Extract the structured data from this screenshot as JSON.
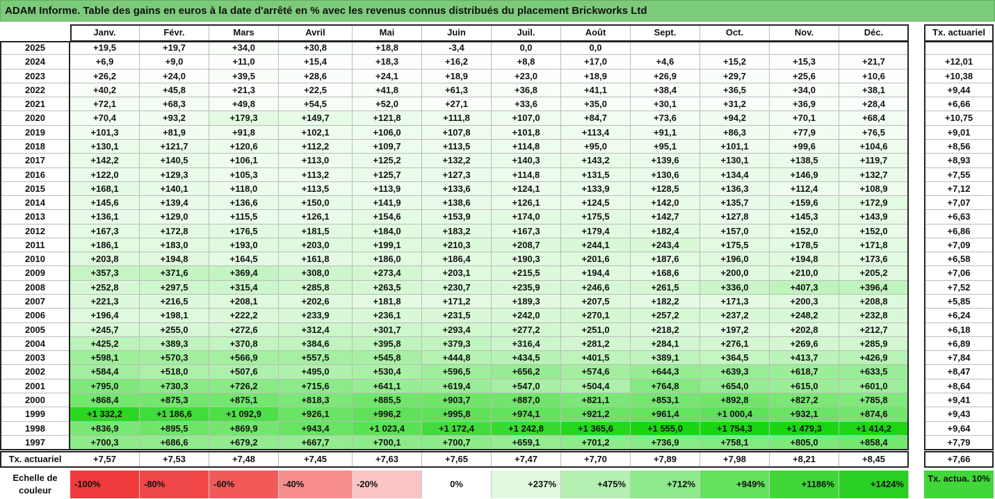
{
  "title": "ADAM Informe. Table des gains en euros à la date d'arrêté en % avec les revenus connus distribués du placement Brickworks Ltd",
  "months": [
    "Janv.",
    "Févr.",
    "Mars",
    "Avril",
    "Mai",
    "Juin",
    "Juil.",
    "Août",
    "Sept.",
    "Oct.",
    "Nov.",
    "Déc."
  ],
  "tx_header": "Tx. actuariel",
  "rows": [
    {
      "year": "2025",
      "values": [
        "+19,5",
        "+19,7",
        "+34,0",
        "+30,8",
        "+18,8",
        "-3,4",
        "0,0",
        "0,0",
        "",
        "",
        "",
        ""
      ],
      "tx": ""
    },
    {
      "year": "2024",
      "values": [
        "+6,9",
        "+9,0",
        "+11,0",
        "+15,4",
        "+18,3",
        "+16,2",
        "+8,8",
        "+17,0",
        "+4,6",
        "+15,2",
        "+15,3",
        "+21,7"
      ],
      "tx": "+12,01"
    },
    {
      "year": "2023",
      "values": [
        "+26,2",
        "+24,0",
        "+39,5",
        "+28,6",
        "+24,1",
        "+18,9",
        "+23,0",
        "+18,9",
        "+26,9",
        "+29,7",
        "+25,6",
        "+10,6"
      ],
      "tx": "+10,38"
    },
    {
      "year": "2022",
      "values": [
        "+40,2",
        "+45,8",
        "+21,3",
        "+22,5",
        "+41,8",
        "+61,3",
        "+36,8",
        "+41,1",
        "+38,4",
        "+36,5",
        "+34,0",
        "+38,1"
      ],
      "tx": "+9,44"
    },
    {
      "year": "2021",
      "values": [
        "+72,1",
        "+68,3",
        "+49,8",
        "+54,5",
        "+52,0",
        "+27,1",
        "+33,6",
        "+35,0",
        "+30,1",
        "+31,2",
        "+36,9",
        "+28,4"
      ],
      "tx": "+6,66"
    },
    {
      "year": "2020",
      "values": [
        "+70,4",
        "+93,2",
        "+179,3",
        "+149,7",
        "+121,8",
        "+111,8",
        "+107,0",
        "+84,7",
        "+73,6",
        "+94,2",
        "+70,1",
        "+68,4"
      ],
      "tx": "+10,75"
    },
    {
      "year": "2019",
      "values": [
        "+101,3",
        "+81,9",
        "+91,8",
        "+102,1",
        "+106,0",
        "+107,8",
        "+101,8",
        "+113,4",
        "+91,1",
        "+86,3",
        "+77,9",
        "+76,5"
      ],
      "tx": "+9,01"
    },
    {
      "year": "2018",
      "values": [
        "+130,1",
        "+121,7",
        "+120,6",
        "+112,2",
        "+109,7",
        "+113,5",
        "+114,8",
        "+95,0",
        "+95,1",
        "+101,1",
        "+99,6",
        "+104,6"
      ],
      "tx": "+8,56"
    },
    {
      "year": "2017",
      "values": [
        "+142,2",
        "+140,5",
        "+106,1",
        "+113,0",
        "+125,2",
        "+132,2",
        "+140,3",
        "+143,2",
        "+139,6",
        "+130,1",
        "+138,5",
        "+119,7"
      ],
      "tx": "+8,93"
    },
    {
      "year": "2016",
      "values": [
        "+122,0",
        "+129,3",
        "+105,3",
        "+113,2",
        "+125,7",
        "+127,3",
        "+114,8",
        "+131,5",
        "+130,6",
        "+134,4",
        "+146,9",
        "+132,7"
      ],
      "tx": "+7,55"
    },
    {
      "year": "2015",
      "values": [
        "+168,1",
        "+140,1",
        "+118,0",
        "+113,5",
        "+113,9",
        "+133,6",
        "+124,1",
        "+133,9",
        "+128,5",
        "+136,3",
        "+112,4",
        "+108,9"
      ],
      "tx": "+7,12"
    },
    {
      "year": "2014",
      "values": [
        "+145,6",
        "+139,4",
        "+136,6",
        "+150,0",
        "+141,9",
        "+138,6",
        "+126,1",
        "+124,5",
        "+142,0",
        "+135,7",
        "+159,6",
        "+172,9"
      ],
      "tx": "+7,07"
    },
    {
      "year": "2013",
      "values": [
        "+136,1",
        "+129,0",
        "+115,5",
        "+126,1",
        "+154,6",
        "+153,9",
        "+174,0",
        "+175,5",
        "+142,7",
        "+127,8",
        "+145,3",
        "+143,9"
      ],
      "tx": "+6,63"
    },
    {
      "year": "2012",
      "values": [
        "+167,3",
        "+172,8",
        "+176,5",
        "+181,5",
        "+184,0",
        "+183,2",
        "+167,3",
        "+179,4",
        "+182,4",
        "+157,0",
        "+152,0",
        "+152,0"
      ],
      "tx": "+6,86"
    },
    {
      "year": "2011",
      "values": [
        "+186,1",
        "+183,0",
        "+193,0",
        "+203,0",
        "+199,1",
        "+210,3",
        "+208,7",
        "+244,1",
        "+243,4",
        "+175,5",
        "+178,5",
        "+171,8"
      ],
      "tx": "+7,09"
    },
    {
      "year": "2010",
      "values": [
        "+203,8",
        "+194,8",
        "+164,5",
        "+161,8",
        "+186,0",
        "+186,4",
        "+190,3",
        "+201,6",
        "+187,6",
        "+196,0",
        "+194,8",
        "+173,6"
      ],
      "tx": "+6,58"
    },
    {
      "year": "2009",
      "values": [
        "+357,3",
        "+371,6",
        "+369,4",
        "+308,0",
        "+273,4",
        "+203,1",
        "+215,5",
        "+194,4",
        "+168,6",
        "+200,0",
        "+210,0",
        "+205,2"
      ],
      "tx": "+7,06"
    },
    {
      "year": "2008",
      "values": [
        "+252,8",
        "+297,5",
        "+315,4",
        "+285,8",
        "+263,5",
        "+230,7",
        "+235,9",
        "+246,6",
        "+261,5",
        "+336,0",
        "+407,3",
        "+396,4"
      ],
      "tx": "+7,52"
    },
    {
      "year": "2007",
      "values": [
        "+221,3",
        "+216,5",
        "+208,1",
        "+202,6",
        "+181,8",
        "+171,2",
        "+189,3",
        "+207,5",
        "+182,2",
        "+171,3",
        "+200,3",
        "+208,8"
      ],
      "tx": "+5,85"
    },
    {
      "year": "2006",
      "values": [
        "+196,4",
        "+198,1",
        "+222,2",
        "+233,9",
        "+236,1",
        "+231,5",
        "+242,0",
        "+270,1",
        "+257,2",
        "+237,2",
        "+248,2",
        "+232,8"
      ],
      "tx": "+6,24"
    },
    {
      "year": "2005",
      "values": [
        "+245,7",
        "+255,0",
        "+272,6",
        "+312,4",
        "+301,7",
        "+293,4",
        "+277,2",
        "+251,0",
        "+218,2",
        "+197,2",
        "+202,8",
        "+212,7"
      ],
      "tx": "+6,18"
    },
    {
      "year": "2004",
      "values": [
        "+425,2",
        "+389,3",
        "+370,8",
        "+384,6",
        "+395,8",
        "+379,3",
        "+316,4",
        "+281,2",
        "+284,1",
        "+276,1",
        "+269,6",
        "+285,9"
      ],
      "tx": "+6,89"
    },
    {
      "year": "2003",
      "values": [
        "+598,1",
        "+570,3",
        "+566,9",
        "+557,5",
        "+545,8",
        "+444,8",
        "+434,5",
        "+401,5",
        "+389,1",
        "+364,5",
        "+413,7",
        "+426,9"
      ],
      "tx": "+7,84"
    },
    {
      "year": "2002",
      "values": [
        "+584,4",
        "+518,0",
        "+507,6",
        "+495,0",
        "+530,4",
        "+596,5",
        "+656,2",
        "+574,6",
        "+644,3",
        "+639,3",
        "+618,7",
        "+633,5"
      ],
      "tx": "+8,47"
    },
    {
      "year": "2001",
      "values": [
        "+795,0",
        "+730,3",
        "+726,2",
        "+715,6",
        "+641,1",
        "+619,4",
        "+547,0",
        "+504,4",
        "+764,8",
        "+654,0",
        "+615,0",
        "+601,0"
      ],
      "tx": "+8,64"
    },
    {
      "year": "2000",
      "values": [
        "+868,4",
        "+875,3",
        "+875,1",
        "+818,3",
        "+885,5",
        "+903,7",
        "+887,0",
        "+821,1",
        "+853,1",
        "+892,8",
        "+827,2",
        "+785,8"
      ],
      "tx": "+9,41"
    },
    {
      "year": "1999",
      "values": [
        "+1 332,2",
        "+1 186,6",
        "+1 092,9",
        "+926,1",
        "+996,2",
        "+995,8",
        "+974,1",
        "+921,2",
        "+961,4",
        "+1 000,4",
        "+932,1",
        "+874,6"
      ],
      "tx": "+9,43"
    },
    {
      "year": "1998",
      "values": [
        "+836,9",
        "+895,5",
        "+869,9",
        "+943,4",
        "+1 023,4",
        "+1 172,4",
        "+1 242,8",
        "+1 365,6",
        "+1 555,0",
        "+1 754,3",
        "+1 479,3",
        "+1 414,2"
      ],
      "tx": "+9,64"
    },
    {
      "year": "1997",
      "values": [
        "+700,3",
        "+686,6",
        "+679,2",
        "+667,7",
        "+700,1",
        "+700,7",
        "+659,1",
        "+701,2",
        "+736,9",
        "+758,1",
        "+805,0",
        "+858,4"
      ],
      "tx": "+7,79"
    }
  ],
  "footer": {
    "label": "Tx. actuariel",
    "values": [
      "+7,57",
      "+7,53",
      "+7,48",
      "+7,45",
      "+7,63",
      "+7,65",
      "+7,47",
      "+7,70",
      "+7,89",
      "+7,98",
      "+8,21",
      "+8,45"
    ],
    "tx": "+7,66"
  },
  "legend": {
    "label": "Echelle de couleur",
    "items": [
      {
        "text": "-100%",
        "color": "#ef3b3b",
        "align": "left"
      },
      {
        "text": "-80%",
        "color": "#f04848",
        "align": "left"
      },
      {
        "text": "-60%",
        "color": "#f25a5a",
        "align": "left"
      },
      {
        "text": "-40%",
        "color": "#f78d8d",
        "align": "left"
      },
      {
        "text": "-20%",
        "color": "#fbc5c5",
        "align": "left"
      },
      {
        "text": "0%",
        "color": "#ffffff",
        "align": "center"
      },
      {
        "text": "+237%",
        "color": "#e0f9e0",
        "align": "right"
      },
      {
        "text": "+475%",
        "color": "#b5f0b2",
        "align": "right"
      },
      {
        "text": "+712%",
        "color": "#8ee98a",
        "align": "right"
      },
      {
        "text": "+949%",
        "color": "#64e05e",
        "align": "right"
      },
      {
        "text": "+1186%",
        "color": "#3fd838",
        "align": "right"
      },
      {
        "text": "+1424%",
        "color": "#29cf22",
        "align": "right"
      }
    ],
    "tx_label": "Tx. actua. 10%",
    "tx_color": "#3fd838"
  }
}
